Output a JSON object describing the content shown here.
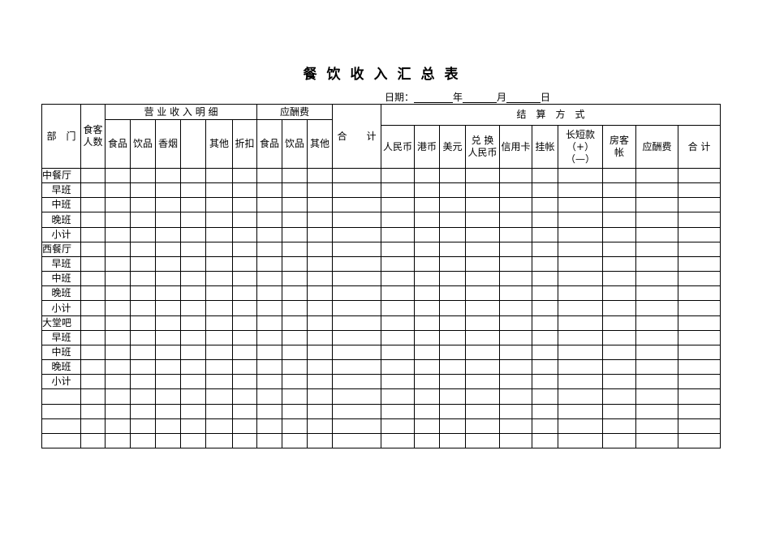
{
  "title": "餐饮收入汇总表",
  "date": {
    "label": "日期：",
    "year": "年",
    "month": "月",
    "day": "日"
  },
  "header": {
    "department": "部　门",
    "guests": "食客人数",
    "revenue_group": "营 业 收 入 明 细",
    "revenue_cols": [
      "食品",
      "饮品",
      "香烟",
      "",
      "其他",
      "折扣"
    ],
    "entertainment_group": "应酬费",
    "entertainment_cols": [
      "食品",
      "饮品",
      "其他"
    ],
    "total": "合　　计",
    "settlement_group": "结　算　方　式",
    "settlement_cols": [
      "人民币",
      "港币",
      "美元",
      "兑 换\n人民币",
      "信用卡",
      "挂帐",
      "长短款\n（+）\n（—）",
      "房客\n帐",
      "应酬费",
      "合 计"
    ]
  },
  "rows": [
    "中餐厅",
    "早班",
    "中班",
    "晚班",
    "小计",
    "西餐厅",
    "早班",
    "中班",
    "晚班",
    "小计",
    "大堂吧",
    "早班",
    "中班",
    "晚班",
    "小计",
    "",
    "",
    "",
    ""
  ]
}
